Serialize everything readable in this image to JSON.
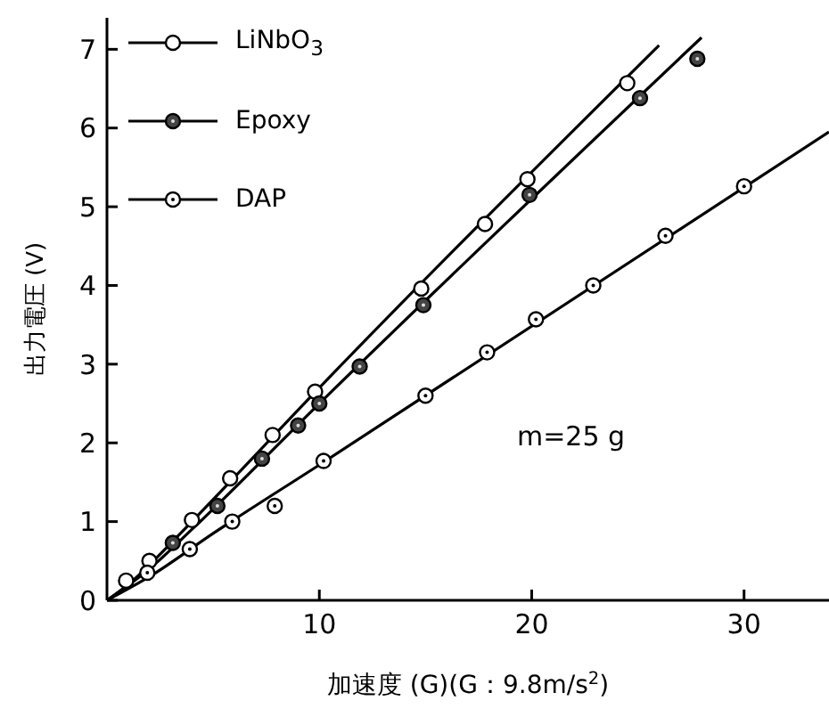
{
  "chart_data": {
    "type": "scatter",
    "xlabel": "加速度 (G)(G：9.8m/s$^{2}$)",
    "ylabel": "出力電圧 (V)",
    "annotations": [
      "m=25 g"
    ],
    "xlim": [
      0,
      34
    ],
    "ylim": [
      0,
      7.4
    ],
    "xticks": [
      10,
      20,
      30
    ],
    "yticks": [
      0,
      1,
      2,
      3,
      4,
      5,
      6,
      7
    ],
    "grid": false,
    "legend": "top left",
    "marker": "circle",
    "series": [
      {
        "name": "LiNbO$_{3}$",
        "color": "#000000",
        "x": [
          0.9,
          2,
          4,
          5.8,
          7.8,
          9.8,
          14.8,
          17.8,
          19.8,
          24.5
        ],
        "values": [
          0.25,
          0.5,
          1.02,
          1.55,
          2.1,
          2.65,
          3.96,
          4.78,
          5.35,
          6.57
        ]
      },
      {
        "name": "Epoxy",
        "color": "#000000",
        "x": [
          3.1,
          5.2,
          7.3,
          9,
          10,
          11.9,
          14.9,
          19.9,
          25.1,
          27.8
        ],
        "values": [
          0.73,
          1.2,
          1.8,
          2.22,
          2.5,
          2.97,
          3.75,
          5.15,
          6.38,
          6.88
        ]
      },
      {
        "name": "DAP",
        "color": "#000000",
        "x": [
          1.9,
          3.9,
          5.9,
          7.9,
          10.2,
          15,
          17.9,
          20.2,
          22.9,
          26.3,
          30
        ],
        "values": [
          0.35,
          0.65,
          1.0,
          1.2,
          1.77,
          2.6,
          3.15,
          3.57,
          4.0,
          4.63,
          5.26
        ]
      },
      {
        "type": "line",
        "marker": "none",
        "color": "#000000",
        "x": [
          0,
          1,
          2,
          4,
          10,
          26
        ],
        "values": [
          0,
          0.2,
          0.45,
          1.0,
          2.7,
          7.05
        ]
      },
      {
        "type": "line",
        "marker": "none",
        "color": "#000000",
        "x": [
          0,
          2,
          4,
          10,
          28
        ],
        "values": [
          0,
          0.4,
          0.9,
          2.5,
          7.15
        ]
      },
      {
        "type": "line",
        "marker": "none",
        "color": "#000000",
        "x": [
          0,
          2,
          5,
          10,
          34
        ],
        "values": [
          0,
          0.3,
          0.85,
          1.72,
          5.95
        ]
      }
    ]
  }
}
